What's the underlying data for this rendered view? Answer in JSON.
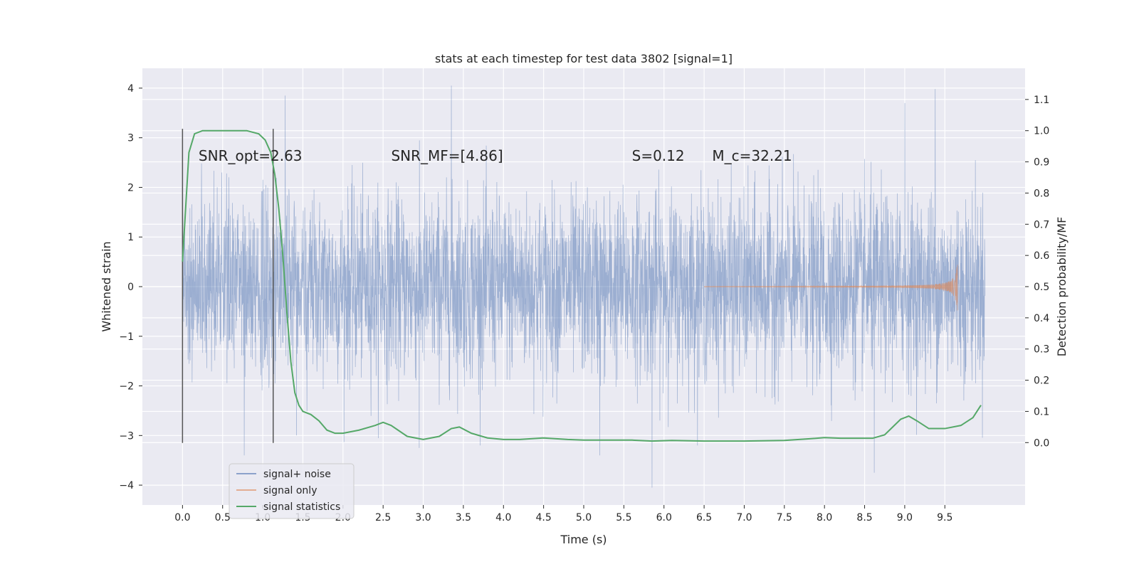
{
  "chart_data": {
    "type": "line",
    "title": "stats at each timestep for test data 3802 [signal=1]",
    "xlabel": "Time (s)",
    "ylabel_left": "Whitened strain",
    "ylabel_right": "Detection probability/MF",
    "xlim": [
      -0.5,
      10.5
    ],
    "ylim_left": [
      -4.4,
      4.4
    ],
    "ylim_right": [
      -0.2,
      1.2
    ],
    "x_ticks": [
      0.0,
      0.5,
      1.0,
      1.5,
      2.0,
      2.5,
      3.0,
      3.5,
      4.0,
      4.5,
      5.0,
      5.5,
      6.0,
      6.5,
      7.0,
      7.5,
      8.0,
      8.5,
      9.0,
      9.5
    ],
    "x_tick_labels": [
      "0.0",
      "0.5",
      "1.0",
      "1.5",
      "2.0",
      "2.5",
      "3.0",
      "3.5",
      "4.0",
      "4.5",
      "5.0",
      "5.5",
      "6.0",
      "6.5",
      "7.0",
      "7.5",
      "8.0",
      "8.5",
      "9.0",
      "9.5"
    ],
    "y_ticks_left": [
      -4,
      -3,
      -2,
      -1,
      0,
      1,
      2,
      3,
      4
    ],
    "y_tick_labels_left": [
      "−4",
      "−3",
      "−2",
      "−1",
      "0",
      "1",
      "2",
      "3",
      "4"
    ],
    "y_ticks_right": [
      0.0,
      0.1,
      0.2,
      0.3,
      0.4,
      0.5,
      0.6,
      0.7,
      0.8,
      0.9,
      1.0,
      1.1
    ],
    "y_tick_labels_right": [
      "0.0",
      "0.1",
      "0.2",
      "0.3",
      "0.4",
      "0.5",
      "0.6",
      "0.7",
      "0.8",
      "0.9",
      "1.0",
      "1.1"
    ],
    "grid": true,
    "legend_position": "lower-left",
    "annotations": [
      {
        "text": "SNR_opt=2.63",
        "x": 0.2,
        "y": 0.8
      },
      {
        "text": "SNR_MF=[4.86]",
        "x": 2.6,
        "y": 0.8
      },
      {
        "text": "S=0.12",
        "x": 5.6,
        "y": 0.8
      },
      {
        "text": "M_c=32.21",
        "x": 6.6,
        "y": 0.8
      }
    ],
    "vertical_lines": [
      0.0,
      1.13
    ],
    "series": [
      {
        "name": "signal+ noise",
        "axis": "left",
        "color": "#4c72b0",
        "kind": "noise",
        "x_range": [
          0.0,
          10.0
        ],
        "amplitude_std": 0.9,
        "peaks": [
          {
            "x": 0.0,
            "y": 2.8
          },
          {
            "x": 1.28,
            "y": 3.85
          },
          {
            "x": 3.35,
            "y": 4.05
          },
          {
            "x": 9.38,
            "y": 3.98
          },
          {
            "x": 9.0,
            "y": 3.7
          },
          {
            "x": 5.85,
            "y": -4.05
          },
          {
            "x": 8.62,
            "y": -3.75
          },
          {
            "x": 0.77,
            "y": -3.4
          },
          {
            "x": 5.2,
            "y": -3.4
          },
          {
            "x": 2.95,
            "y": -3.25
          }
        ]
      },
      {
        "name": "signal only",
        "axis": "left",
        "color": "#dd8452",
        "kind": "chirp",
        "x_range": [
          6.5,
          9.66
        ],
        "peak_amplitude": 0.6
      },
      {
        "name": "signal statistics",
        "axis": "right",
        "color": "#55a868",
        "kind": "line",
        "x": [
          0.0,
          0.08,
          0.15,
          0.25,
          0.4,
          0.6,
          0.8,
          0.95,
          1.03,
          1.1,
          1.15,
          1.2,
          1.25,
          1.3,
          1.35,
          1.4,
          1.45,
          1.5,
          1.6,
          1.7,
          1.8,
          1.9,
          2.0,
          2.2,
          2.4,
          2.5,
          2.6,
          2.8,
          3.0,
          3.2,
          3.35,
          3.45,
          3.6,
          3.8,
          4.0,
          4.2,
          4.5,
          4.8,
          5.0,
          5.3,
          5.6,
          5.85,
          6.1,
          6.5,
          7.0,
          7.5,
          7.8,
          8.0,
          8.2,
          8.4,
          8.6,
          8.75,
          8.85,
          8.95,
          9.05,
          9.15,
          9.3,
          9.5,
          9.7,
          9.85,
          9.95
        ],
        "y": [
          0.58,
          0.93,
          0.99,
          1.0,
          1.0,
          1.0,
          1.0,
          0.99,
          0.97,
          0.93,
          0.86,
          0.75,
          0.6,
          0.42,
          0.26,
          0.16,
          0.12,
          0.1,
          0.09,
          0.07,
          0.04,
          0.03,
          0.03,
          0.04,
          0.055,
          0.065,
          0.055,
          0.02,
          0.01,
          0.02,
          0.045,
          0.05,
          0.03,
          0.015,
          0.01,
          0.01,
          0.015,
          0.01,
          0.008,
          0.008,
          0.008,
          0.005,
          0.007,
          0.005,
          0.005,
          0.007,
          0.012,
          0.016,
          0.014,
          0.014,
          0.014,
          0.025,
          0.05,
          0.075,
          0.085,
          0.07,
          0.045,
          0.045,
          0.055,
          0.08,
          0.12
        ]
      }
    ]
  }
}
